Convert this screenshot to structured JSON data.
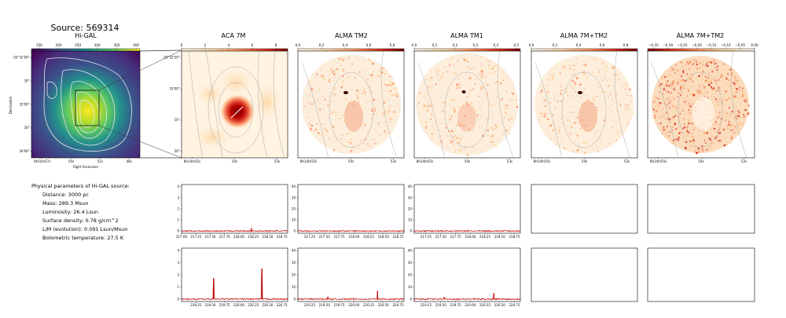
{
  "page_title": "Source: 569314",
  "params": {
    "heading": "Physical parameters of Hi-GAL source:",
    "lines": [
      "Distance: 3000 pc",
      "Mass: 289.3 Msun",
      "Luminosity: 26.4 Lsun",
      "Surface density: 0.78 g/cm^2",
      "L/M (evolution): 0.091 Lsun/Msun",
      "Bolometric temperature: 27.5 K"
    ]
  },
  "colors": {
    "viridis": [
      "#440154",
      "#3b528b",
      "#21918c",
      "#5ec962",
      "#fde725"
    ],
    "orrd": [
      "#fff7ec",
      "#fdd49e",
      "#fc8d59",
      "#d7301f",
      "#7f0000"
    ],
    "spectrum_line": "#c00000"
  },
  "chart_data": [
    {
      "type": "heatmap",
      "title": "Hi-GAL",
      "colormap": "viridis",
      "colorbar_ticks": [
        "150",
        "200",
        "250",
        "300",
        "350",
        "400"
      ],
      "colorbar_range": [
        130,
        410
      ],
      "xlabel": "Right Ascension",
      "ylabel": "Declination",
      "xticks": [
        "8h14m57s",
        "54s",
        "51s",
        "48s"
      ],
      "yticks": [
        "-35°32'00\"",
        "30\"",
        "33'00\"",
        "30\"",
        "34'00\""
      ]
    },
    {
      "type": "heatmap",
      "title": "ACA 7M",
      "colormap": "orrd",
      "colorbar_ticks": [
        "0",
        "2",
        "4",
        "6",
        "8"
      ],
      "colorbar_range": [
        0,
        9
      ],
      "xticks": [
        "8h14m55s",
        "54s",
        "53s"
      ],
      "yticks": [
        "-35°32'50\"",
        "33'00\"",
        "10\"",
        "20\""
      ]
    },
    {
      "type": "heatmap",
      "title": "ALMA TM2",
      "colormap": "orrd",
      "colorbar_ticks": [
        "0.0",
        "0.2",
        "0.4",
        "0.6",
        "0.8"
      ],
      "colorbar_range": [
        0,
        0.9
      ],
      "xticks": [
        "8h14m55s",
        "54s",
        "53s"
      ]
    },
    {
      "type": "heatmap",
      "title": "ALMA TM1",
      "colormap": "orrd",
      "colorbar_ticks": [
        "0.0",
        "0.1",
        "0.2",
        "0.3",
        "0.4",
        "0.5"
      ],
      "colorbar_range": [
        0,
        0.52
      ],
      "xticks": [
        "8h14m55s",
        "54s",
        "53s"
      ]
    },
    {
      "type": "heatmap",
      "title": "ALMA 7M+TM2",
      "colormap": "orrd",
      "colorbar_ticks": [
        "0.0",
        "0.2",
        "0.4",
        "0.6",
        "0.8"
      ],
      "colorbar_range": [
        0,
        0.9
      ],
      "xticks": [
        "8h14m55s",
        "54s",
        "53s"
      ]
    },
    {
      "type": "heatmap",
      "title": "ALMA 7M+TM2",
      "colormap": "orrd",
      "colorbar_ticks": [
        "−0.35",
        "−0.30",
        "−0.25",
        "−0.20",
        "−0.15",
        "−0.10",
        "−0.05",
        "0.00"
      ],
      "colorbar_range": [
        -0.37,
        0
      ],
      "xticks": [
        "8h14m55s",
        "54s",
        "53s"
      ]
    },
    {
      "type": "line",
      "xticks": [
        "217.00",
        "217.25",
        "217.50",
        "217.75",
        "218.00",
        "218.25",
        "218.50",
        "218.75"
      ],
      "xlim": [
        217.0,
        218.85
      ],
      "yticks": [
        "0",
        "1",
        "2",
        "3",
        "4"
      ],
      "ylim": [
        -0.2,
        4.2
      ],
      "peaks": [
        {
          "x": 218.22,
          "y": 0.28
        }
      ]
    },
    {
      "type": "line",
      "xticks": [
        "217.25",
        "217.50",
        "217.75",
        "218.00",
        "218.25",
        "218.50",
        "218.75"
      ],
      "xlim": [
        217.05,
        218.85
      ],
      "yticks": [
        "0",
        "10",
        "20",
        "30",
        "40"
      ],
      "ylim": [
        -2,
        42
      ],
      "peaks": []
    },
    {
      "type": "line",
      "xticks": [
        "217.25",
        "217.50",
        "217.75",
        "218.00",
        "218.25",
        "218.50",
        "218.75"
      ],
      "xlim": [
        217.05,
        218.85
      ],
      "yticks": [
        "0",
        "10",
        "20",
        "30",
        "40"
      ],
      "ylim": [
        -2,
        42
      ],
      "peaks": []
    },
    {
      "type": "line",
      "xticks": [
        "219.25",
        "219.50",
        "219.75",
        "220.00",
        "220.25",
        "220.50",
        "220.75"
      ],
      "xlim": [
        219.0,
        220.85
      ],
      "yticks": [
        "0",
        "1",
        "2",
        "3",
        "4"
      ],
      "ylim": [
        -0.2,
        4.2
      ],
      "peaks": [
        {
          "x": 219.56,
          "y": 1.7
        },
        {
          "x": 220.4,
          "y": 2.5
        }
      ]
    },
    {
      "type": "line",
      "xticks": [
        "219.25",
        "219.50",
        "219.75",
        "220.00",
        "220.25",
        "220.50",
        "220.75"
      ],
      "xlim": [
        219.05,
        220.85
      ],
      "yticks": [
        "0",
        "10",
        "20",
        "30",
        "40"
      ],
      "ylim": [
        -2,
        42
      ],
      "peaks": [
        {
          "x": 219.56,
          "y": 2
        },
        {
          "x": 220.4,
          "y": 7
        }
      ]
    },
    {
      "type": "line",
      "xticks": [
        "219.25",
        "219.50",
        "219.75",
        "220.00",
        "220.25",
        "220.50",
        "220.75"
      ],
      "xlim": [
        219.05,
        220.85
      ],
      "yticks": [
        "0",
        "10",
        "20",
        "30",
        "40"
      ],
      "ylim": [
        -2,
        42
      ],
      "peaks": [
        {
          "x": 219.56,
          "y": 1.5
        },
        {
          "x": 220.4,
          "y": 5
        }
      ]
    }
  ]
}
